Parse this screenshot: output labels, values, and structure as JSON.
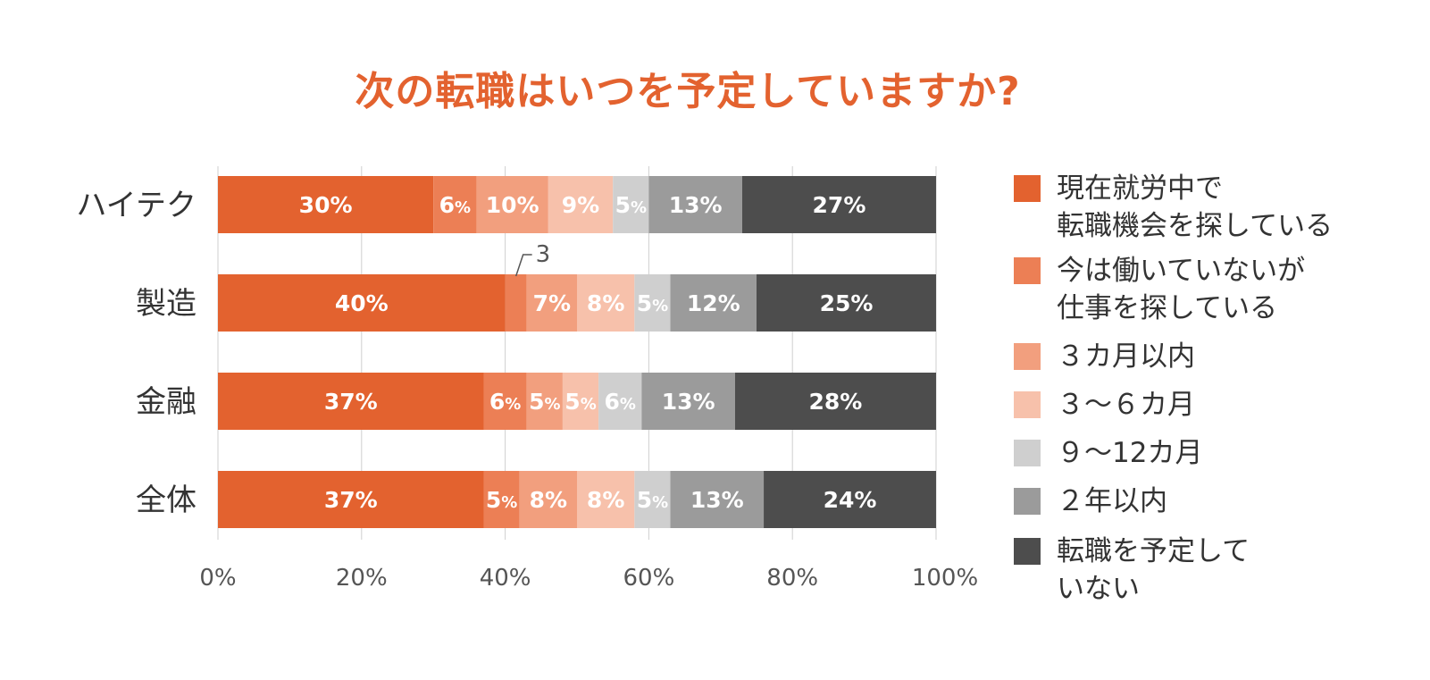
{
  "chart_data": {
    "type": "bar",
    "orientation": "horizontal",
    "stacked": true,
    "title": "次の転職はいつを予定していますか?",
    "categories": [
      "ハイテク",
      "製造",
      "金融",
      "全体"
    ],
    "series": [
      {
        "name": "現在就労中で\n転職機会を探している",
        "color": "#e3622f",
        "values": [
          30,
          40,
          37,
          37
        ]
      },
      {
        "name": "今は働いていないが\n仕事を探している",
        "color": "#ec7f55",
        "values": [
          6,
          3,
          6,
          5
        ]
      },
      {
        "name": "３カ月以内",
        "color": "#f29f7e",
        "values": [
          10,
          7,
          5,
          8
        ]
      },
      {
        "name": "３～６カ月",
        "color": "#f7c1ab",
        "values": [
          9,
          8,
          5,
          8
        ]
      },
      {
        "name": "９～12カ月",
        "color": "#cfcfcf",
        "values": [
          5,
          5,
          6,
          5
        ]
      },
      {
        "name": "２年以内",
        "color": "#9b9b9b",
        "values": [
          13,
          12,
          13,
          13
        ]
      },
      {
        "name": "転職を予定して\nいない",
        "color": "#4d4d4d",
        "values": [
          27,
          25,
          28,
          24
        ]
      }
    ],
    "data_labels": [
      [
        "30%",
        "6%",
        "10%",
        "9%",
        "5%",
        "13%",
        "27%"
      ],
      [
        "40%",
        "",
        "7%",
        "8%",
        "5%",
        "12%",
        "25%"
      ],
      [
        "37%",
        "6%",
        "5%",
        "5%",
        "6%",
        "13%",
        "28%"
      ],
      [
        "37%",
        "5%",
        "8%",
        "8%",
        "5%",
        "13%",
        "24%"
      ]
    ],
    "callout": {
      "category": "製造",
      "series_index": 1,
      "text": "3"
    },
    "xlim": [
      0,
      100
    ],
    "xticks": [
      "0%",
      "20%",
      "40%",
      "60%",
      "80%",
      "100%"
    ],
    "grid": true,
    "legend_position": "right"
  }
}
